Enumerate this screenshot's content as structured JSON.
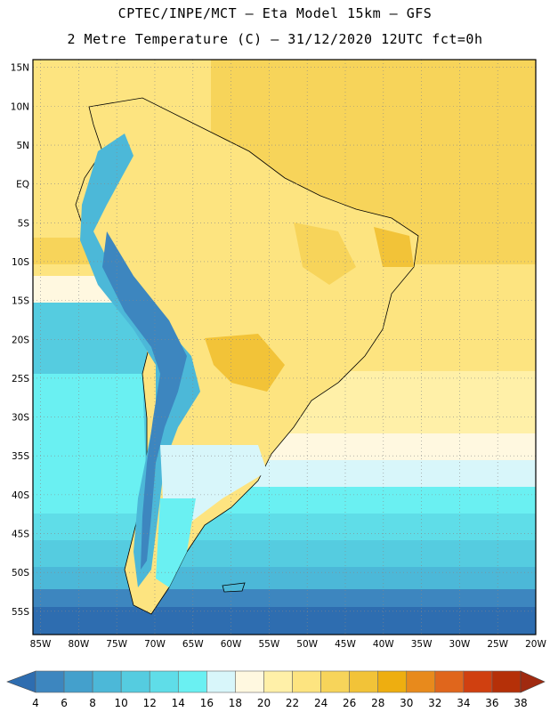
{
  "header": {
    "title_line1": "CPTEC/INPE/MCT –  Eta Model 15km – GFS",
    "title_line2": "2 Metre Temperature (C) – 31/12/2020 12UTC fct=0h"
  },
  "map": {
    "lat_labels": [
      "15N",
      "10N",
      "5N",
      "EQ",
      "5S",
      "10S",
      "15S",
      "20S",
      "25S",
      "30S",
      "35S",
      "40S",
      "45S",
      "50S",
      "55S"
    ],
    "lon_labels": [
      "85W",
      "80W",
      "75W",
      "70W",
      "65W",
      "60W",
      "55W",
      "50W",
      "45W",
      "40W",
      "35W",
      "30W",
      "25W",
      "20W"
    ],
    "extent": {
      "lon_min": -86,
      "lon_max": -20,
      "lat_min": -58,
      "lat_max": 16
    }
  },
  "colorbar": {
    "labels": [
      "4",
      "6",
      "8",
      "10",
      "12",
      "14",
      "16",
      "18",
      "20",
      "22",
      "24",
      "26",
      "28",
      "30",
      "32",
      "34",
      "36",
      "38"
    ],
    "colors": [
      "#2e6db0",
      "#3d86bf",
      "#44a0cc",
      "#4cb8d8",
      "#55cce0",
      "#5fdde8",
      "#6af0f2",
      "#d8f6fa",
      "#fff8e0",
      "#fff0a8",
      "#fde480",
      "#f7d45a",
      "#f2c338",
      "#eeae10",
      "#e88a1c",
      "#e0661c",
      "#d04010",
      "#b53008",
      "#a02a10"
    ]
  }
}
